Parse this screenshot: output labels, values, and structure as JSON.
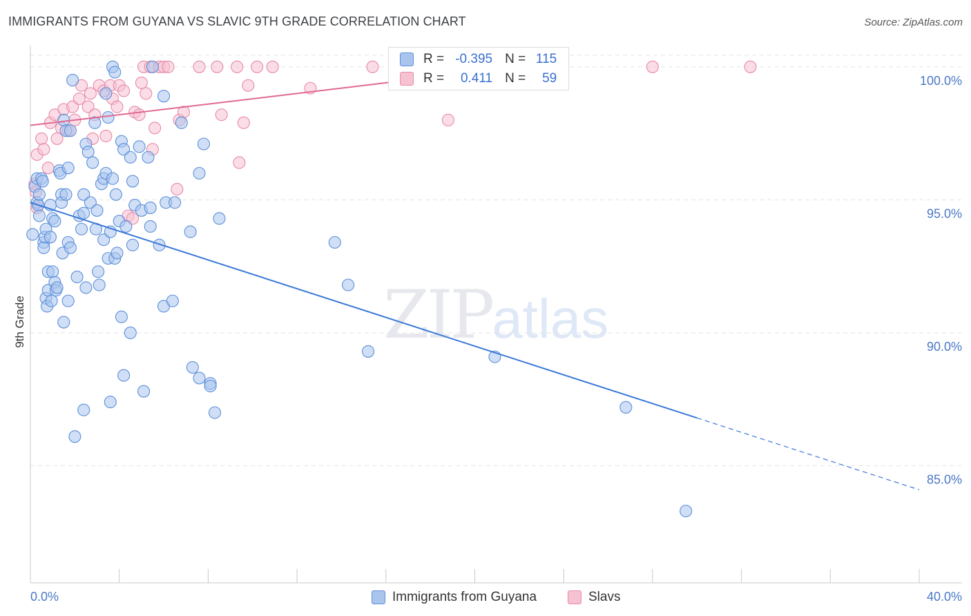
{
  "title": "IMMIGRANTS FROM GUYANA VS SLAVIC 9TH GRADE CORRELATION CHART",
  "source": "Source: ZipAtlas.com",
  "watermark": {
    "zip": "ZIP",
    "atlas": "atlas"
  },
  "legend": {
    "rows": [
      {
        "r_label": "R =",
        "r_value": "-0.395",
        "n_label": "N =",
        "n_value": "115"
      },
      {
        "r_label": "R =",
        "r_value": "0.411",
        "n_label": "N =",
        "n_value": "59"
      }
    ]
  },
  "bottom_legend": [
    "Immigrants from Guyana",
    "Slavs"
  ],
  "colors": {
    "blue_fill": "#a9c5ee",
    "blue_stroke": "#5b8fd9",
    "blue_line": "#3a78d8",
    "pink_fill": "#f6c1d1",
    "pink_stroke": "#e88aa8",
    "pink_line": "#e06890",
    "grid": "#e3e3e3",
    "tick_label": "#4a78c6"
  },
  "chart_data": {
    "type": "scatter",
    "title": "IMMIGRANTS FROM GUYANA VS SLAVIC 9TH GRADE CORRELATION CHART",
    "xlabel": "",
    "ylabel": "9th Grade",
    "xlim": [
      0,
      40
    ],
    "ylim": [
      80.6,
      100.8
    ],
    "x_tick_labels": [
      {
        "value": 0,
        "label": "0.0%"
      },
      {
        "value": 40,
        "label": "40.0%"
      }
    ],
    "y_tick_labels": [
      {
        "value": 100,
        "label": "100.0%"
      },
      {
        "value": 95,
        "label": "95.0%"
      },
      {
        "value": 90,
        "label": "90.0%"
      },
      {
        "value": 85,
        "label": "85.0%"
      }
    ],
    "grid": true,
    "legend_position": "top-center",
    "series": [
      {
        "name": "Immigrants from Guyana",
        "r": -0.395,
        "n": 115,
        "trend": {
          "x0": 0.0,
          "y0": 94.9,
          "x1": 30.0,
          "y1": 86.8,
          "dashed_to_x": 40.0,
          "dashed_to_y": 84.1
        },
        "points": [
          [
            0.1,
            93.7
          ],
          [
            0.2,
            95.5
          ],
          [
            0.3,
            95.8
          ],
          [
            0.3,
            94.9
          ],
          [
            0.35,
            94.8
          ],
          [
            0.4,
            95.2
          ],
          [
            0.4,
            94.4
          ],
          [
            0.5,
            95.8
          ],
          [
            0.55,
            95.7
          ],
          [
            0.6,
            93.4
          ],
          [
            0.6,
            93.2
          ],
          [
            0.65,
            93.6
          ],
          [
            0.7,
            93.9
          ],
          [
            0.7,
            91.3
          ],
          [
            0.75,
            91.0
          ],
          [
            0.8,
            92.3
          ],
          [
            0.8,
            91.6
          ],
          [
            0.9,
            94.8
          ],
          [
            0.9,
            93.6
          ],
          [
            0.95,
            91.2
          ],
          [
            1.0,
            94.3
          ],
          [
            1.0,
            92.3
          ],
          [
            1.1,
            94.2
          ],
          [
            1.1,
            91.9
          ],
          [
            1.15,
            91.6
          ],
          [
            1.2,
            91.7
          ],
          [
            1.3,
            96.1
          ],
          [
            1.35,
            96.0
          ],
          [
            1.4,
            95.2
          ],
          [
            1.4,
            94.9
          ],
          [
            1.45,
            93.0
          ],
          [
            1.5,
            98.0
          ],
          [
            1.5,
            90.4
          ],
          [
            1.6,
            97.6
          ],
          [
            1.6,
            95.2
          ],
          [
            1.7,
            96.2
          ],
          [
            1.7,
            93.4
          ],
          [
            1.7,
            91.2
          ],
          [
            1.8,
            97.6
          ],
          [
            1.8,
            93.2
          ],
          [
            1.9,
            99.5
          ],
          [
            2.0,
            86.1
          ],
          [
            2.1,
            92.1
          ],
          [
            2.2,
            94.4
          ],
          [
            2.3,
            93.9
          ],
          [
            2.4,
            95.2
          ],
          [
            2.4,
            94.5
          ],
          [
            2.4,
            87.1
          ],
          [
            2.5,
            97.1
          ],
          [
            2.5,
            91.7
          ],
          [
            2.6,
            96.8
          ],
          [
            2.7,
            94.9
          ],
          [
            2.8,
            96.4
          ],
          [
            2.9,
            97.9
          ],
          [
            2.95,
            93.9
          ],
          [
            3.0,
            94.6
          ],
          [
            3.05,
            92.3
          ],
          [
            3.1,
            91.8
          ],
          [
            3.2,
            95.6
          ],
          [
            3.3,
            95.8
          ],
          [
            3.3,
            93.5
          ],
          [
            3.4,
            99.0
          ],
          [
            3.4,
            96.0
          ],
          [
            3.5,
            98.1
          ],
          [
            3.5,
            92.8
          ],
          [
            3.6,
            93.8
          ],
          [
            3.6,
            87.4
          ],
          [
            3.7,
            95.8
          ],
          [
            3.7,
            100.0
          ],
          [
            3.8,
            99.8
          ],
          [
            3.8,
            92.8
          ],
          [
            3.85,
            95.2
          ],
          [
            3.9,
            93.0
          ],
          [
            4.0,
            94.2
          ],
          [
            4.1,
            97.2
          ],
          [
            4.1,
            90.6
          ],
          [
            4.2,
            96.9
          ],
          [
            4.2,
            88.4
          ],
          [
            4.3,
            94.0
          ],
          [
            4.5,
            96.6
          ],
          [
            4.5,
            90.0
          ],
          [
            4.6,
            95.7
          ],
          [
            4.6,
            93.3
          ],
          [
            4.7,
            94.8
          ],
          [
            4.9,
            97.0
          ],
          [
            5.0,
            94.6
          ],
          [
            5.1,
            87.8
          ],
          [
            5.3,
            96.6
          ],
          [
            5.4,
            94.7
          ],
          [
            5.4,
            94.0
          ],
          [
            5.5,
            100.0
          ],
          [
            5.8,
            93.3
          ],
          [
            6.0,
            98.9
          ],
          [
            6.0,
            91.0
          ],
          [
            6.1,
            94.9
          ],
          [
            6.4,
            91.2
          ],
          [
            6.5,
            94.9
          ],
          [
            6.8,
            97.9
          ],
          [
            7.2,
            93.8
          ],
          [
            7.3,
            88.7
          ],
          [
            7.6,
            96.0
          ],
          [
            7.6,
            88.3
          ],
          [
            7.8,
            97.1
          ],
          [
            8.1,
            88.1
          ],
          [
            8.1,
            88.0
          ],
          [
            8.3,
            87.0
          ],
          [
            8.5,
            94.3
          ],
          [
            13.7,
            93.4
          ],
          [
            14.3,
            91.8
          ],
          [
            15.2,
            89.3
          ],
          [
            20.9,
            89.1
          ],
          [
            26.8,
            87.2
          ],
          [
            29.5,
            83.3
          ]
        ]
      },
      {
        "name": "Slavs",
        "r": 0.411,
        "n": 59,
        "trend": {
          "x0": 0.0,
          "y0": 97.8,
          "x1": 22.0,
          "y1": 100.0
        },
        "points": [
          [
            0.2,
            95.6
          ],
          [
            0.25,
            95.3
          ],
          [
            0.3,
            96.7
          ],
          [
            0.3,
            94.7
          ],
          [
            0.5,
            97.3
          ],
          [
            0.6,
            96.9
          ],
          [
            0.8,
            96.2
          ],
          [
            0.9,
            97.9
          ],
          [
            1.1,
            98.2
          ],
          [
            1.2,
            97.3
          ],
          [
            1.4,
            97.7
          ],
          [
            1.5,
            98.4
          ],
          [
            1.7,
            97.6
          ],
          [
            1.9,
            98.5
          ],
          [
            2.0,
            98.0
          ],
          [
            2.2,
            98.8
          ],
          [
            2.3,
            99.3
          ],
          [
            2.6,
            98.5
          ],
          [
            2.7,
            99.0
          ],
          [
            2.8,
            97.3
          ],
          [
            2.9,
            98.2
          ],
          [
            3.1,
            99.3
          ],
          [
            3.3,
            99.1
          ],
          [
            3.4,
            97.4
          ],
          [
            3.6,
            99.3
          ],
          [
            3.7,
            98.8
          ],
          [
            3.9,
            98.5
          ],
          [
            4.0,
            99.3
          ],
          [
            4.2,
            99.1
          ],
          [
            4.4,
            94.4
          ],
          [
            4.6,
            94.3
          ],
          [
            4.7,
            98.3
          ],
          [
            4.9,
            98.2
          ],
          [
            5.0,
            99.4
          ],
          [
            5.1,
            100.0
          ],
          [
            5.2,
            99.0
          ],
          [
            5.4,
            100.0
          ],
          [
            5.5,
            96.9
          ],
          [
            5.6,
            97.7
          ],
          [
            5.8,
            100.0
          ],
          [
            6.0,
            100.0
          ],
          [
            6.2,
            100.0
          ],
          [
            6.6,
            95.4
          ],
          [
            6.7,
            98.0
          ],
          [
            6.9,
            98.3
          ],
          [
            7.6,
            100.0
          ],
          [
            8.4,
            100.0
          ],
          [
            8.6,
            98.2
          ],
          [
            9.3,
            100.0
          ],
          [
            9.4,
            96.4
          ],
          [
            9.6,
            97.9
          ],
          [
            9.8,
            99.3
          ],
          [
            10.2,
            100.0
          ],
          [
            10.9,
            100.0
          ],
          [
            12.6,
            99.2
          ],
          [
            15.4,
            100.0
          ],
          [
            18.8,
            98.0
          ],
          [
            28.0,
            100.0
          ],
          [
            32.4,
            100.0
          ]
        ]
      }
    ]
  }
}
